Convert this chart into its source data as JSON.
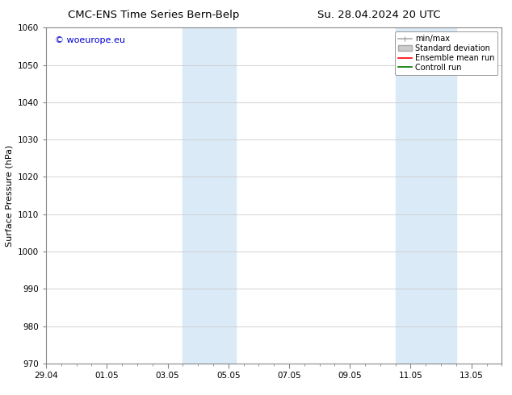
{
  "title_left": "CMC-ENS Time Series Bern-Belp",
  "title_right": "Su. 28.04.2024 20 UTC",
  "ylabel": "Surface Pressure (hPa)",
  "ylim": [
    970,
    1060
  ],
  "yticks": [
    970,
    980,
    990,
    1000,
    1010,
    1020,
    1030,
    1040,
    1050,
    1060
  ],
  "xlim": [
    0,
    15
  ],
  "xtick_labels": [
    "29.04",
    "01.05",
    "03.05",
    "05.05",
    "07.05",
    "09.05",
    "11.05",
    "13.05"
  ],
  "xtick_positions": [
    0,
    2,
    4,
    6,
    8,
    10,
    12,
    14
  ],
  "shaded_bands": [
    {
      "start": 4.5,
      "end": 6.25
    },
    {
      "start": 11.5,
      "end": 13.5
    }
  ],
  "shaded_color": "#daeaf7",
  "watermark_text": "© woeurope.eu",
  "watermark_color": "#0000cc",
  "legend_items": [
    {
      "label": "min/max",
      "color": "#aaaaaa",
      "lw": 1.2
    },
    {
      "label": "Standard deviation",
      "color": "#cccccc",
      "lw": 6
    },
    {
      "label": "Ensemble mean run",
      "color": "#ff0000",
      "lw": 1.2
    },
    {
      "label": "Controll run",
      "color": "#007700",
      "lw": 1.2
    }
  ],
  "bg_color": "#ffffff",
  "grid_color": "#cccccc",
  "title_fontsize": 9.5,
  "ylabel_fontsize": 8,
  "tick_fontsize": 7.5,
  "legend_fontsize": 7,
  "watermark_fontsize": 8
}
